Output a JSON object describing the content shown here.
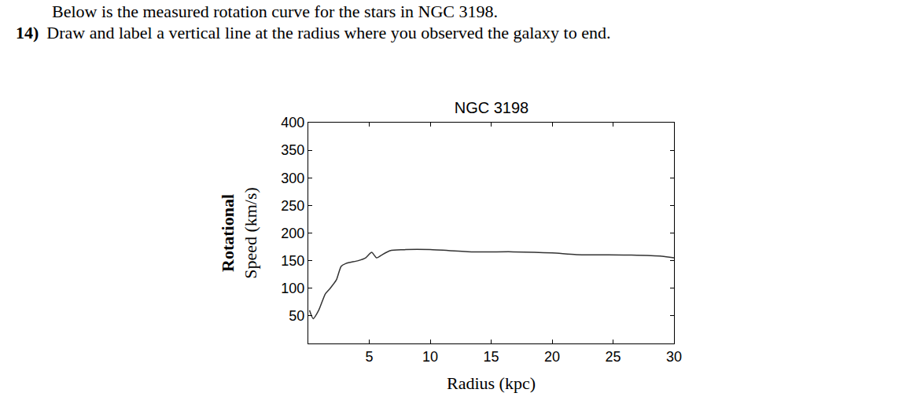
{
  "document": {
    "intro": "Below is the measured rotation curve for the stars in NGC 3198.",
    "question": {
      "number": "14)",
      "text": "Draw and label a vertical line at the radius where you observed the galaxy to end."
    }
  },
  "chart_data": {
    "type": "line",
    "title": "NGC 3198",
    "x_label": "Radius (kpc)",
    "y_label": [
      "Rotational",
      "Speed (km/s)"
    ],
    "x": [
      0.1,
      0.4,
      0.85,
      1.4,
      1.8,
      2.3,
      2.7,
      3.1,
      4.1,
      4.7,
      5.2,
      5.6,
      6.0,
      6.7,
      8,
      10,
      13.5,
      16.8,
      20,
      22,
      26.5,
      29,
      30
    ],
    "values": [
      60,
      45,
      60,
      90,
      100,
      115,
      140,
      145,
      150,
      155,
      165,
      155,
      160,
      168,
      170,
      170,
      166,
      166,
      164,
      161,
      160,
      158,
      155
    ],
    "color": "#333333",
    "xlim": [
      0,
      30
    ],
    "xticks": [
      5,
      10,
      15,
      20,
      25,
      30
    ],
    "ylim": [
      0,
      400
    ],
    "yticks": [
      50,
      100,
      150,
      200,
      250,
      300,
      350,
      400
    ],
    "grid": false
  }
}
